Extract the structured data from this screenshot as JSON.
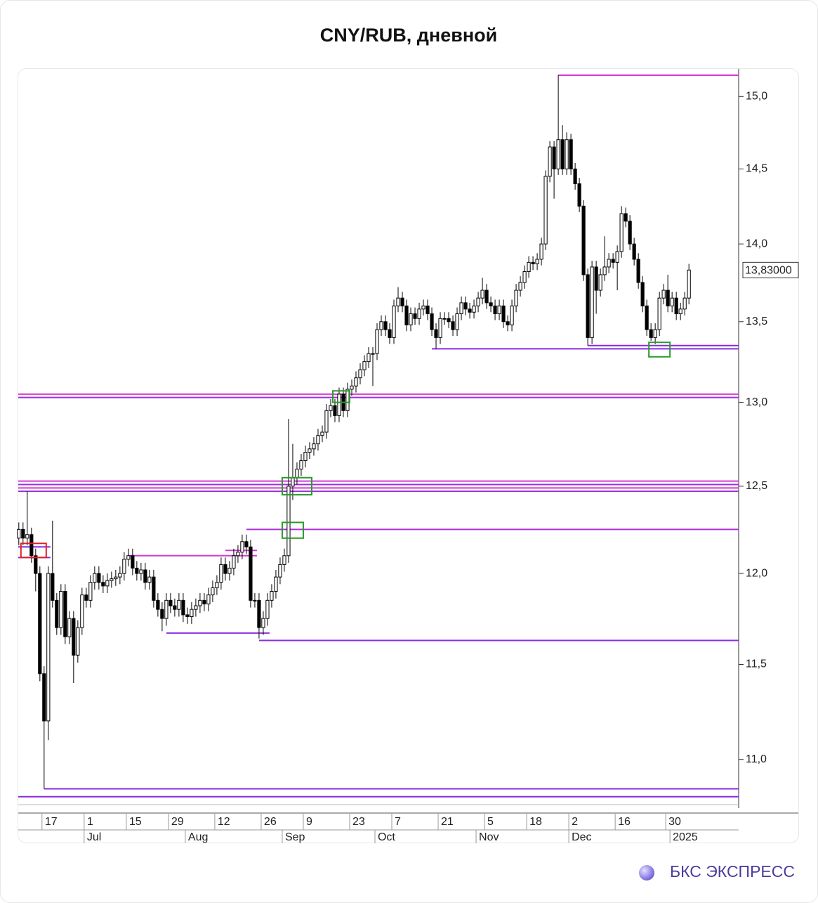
{
  "chart_data": {
    "type": "candlestick",
    "title": "CNY/RUB, дневной",
    "log_scale": true,
    "ylim": [
      10.77,
      15.2
    ],
    "yticks": [
      {
        "value": 11,
        "label": "11,0"
      },
      {
        "value": 11.5,
        "label": "11,5"
      },
      {
        "value": 12,
        "label": "12,0"
      },
      {
        "value": 12.5,
        "label": "12,5"
      },
      {
        "value": 13,
        "label": "13,0"
      },
      {
        "value": 13.5,
        "label": "13,5"
      },
      {
        "value": 14,
        "label": "14,0"
      },
      {
        "value": 14.5,
        "label": "14,5"
      },
      {
        "value": 15,
        "label": "15,0"
      }
    ],
    "xlim": [
      -0.3,
      170.8
    ],
    "xticks": [
      {
        "value": 6,
        "label": "17"
      },
      {
        "value": 16,
        "label": "1"
      },
      {
        "value": 26,
        "label": "15"
      },
      {
        "value": 36,
        "label": "29"
      },
      {
        "value": 47,
        "label": "12"
      },
      {
        "value": 58,
        "label": "26"
      },
      {
        "value": 68,
        "label": "9"
      },
      {
        "value": 79,
        "label": "23"
      },
      {
        "value": 89,
        "label": "7"
      },
      {
        "value": 100,
        "label": "21"
      },
      {
        "value": 111,
        "label": "5"
      },
      {
        "value": 121,
        "label": "18"
      },
      {
        "value": 131,
        "label": "2"
      },
      {
        "value": 142,
        "label": "16"
      },
      {
        "value": 154,
        "label": "30"
      }
    ],
    "month_ticks": [
      {
        "value": 16,
        "label": "Jul"
      },
      {
        "value": 40,
        "label": "Aug"
      },
      {
        "value": 63,
        "label": "Sep"
      },
      {
        "value": 85,
        "label": "Oct"
      },
      {
        "value": 109,
        "label": "Nov"
      },
      {
        "value": 131,
        "label": "Dec"
      },
      {
        "value": 155,
        "label": "2025"
      }
    ],
    "up_color": "#ffffff",
    "down_color": "#000000",
    "open": [
      12.2,
      12.25,
      12.2,
      12.22,
      12.1,
      12.0,
      11.45,
      11.2,
      12.0,
      11.85,
      11.7,
      11.9,
      11.65,
      11.75,
      11.55,
      11.7,
      11.88,
      11.85,
      11.95,
      12.0,
      11.95,
      11.93,
      11.96,
      11.97,
      11.98,
      12.0,
      12.08,
      12.1,
      12.03,
      12.0,
      12.02,
      11.95,
      11.98,
      11.85,
      11.8,
      11.75,
      11.85,
      11.82,
      11.8,
      11.85,
      11.77,
      11.76,
      11.8,
      11.82,
      11.85,
      11.83,
      11.88,
      11.92,
      11.95,
      12.05,
      12.0,
      12.03,
      12.1,
      12.12,
      12.18,
      12.15,
      11.85,
      11.85,
      11.7,
      11.75,
      11.85,
      11.9,
      11.98,
      12.05,
      12.1,
      12.5,
      12.55,
      12.6,
      12.65,
      12.7,
      12.72,
      12.75,
      12.8,
      12.82,
      12.95,
      12.98,
      12.92,
      13.05,
      12.95,
      13.08,
      13.1,
      13.15,
      13.2,
      13.25,
      13.3,
      13.3,
      13.45,
      13.5,
      13.45,
      13.4,
      13.6,
      13.65,
      13.6,
      13.48,
      13.55,
      13.52,
      13.58,
      13.6,
      13.55,
      13.45,
      13.4,
      13.52,
      13.52,
      13.5,
      13.45,
      13.55,
      13.62,
      13.58,
      13.56,
      13.6,
      13.65,
      13.7,
      13.62,
      13.6,
      13.55,
      13.6,
      13.5,
      13.48,
      13.6,
      13.7,
      13.75,
      13.82,
      13.88,
      13.87,
      13.9,
      14.0,
      14.45,
      14.65,
      14.5,
      14.7,
      14.5,
      14.7,
      14.5,
      14.4,
      14.25,
      13.8,
      13.4,
      13.85,
      13.7,
      13.8,
      13.85,
      13.9,
      13.88,
      13.95,
      14.2,
      14.15,
      14.0,
      13.9,
      13.75,
      13.6,
      13.45,
      13.4,
      13.45,
      13.65,
      13.7,
      13.6,
      13.65,
      13.55,
      13.58,
      13.65
    ],
    "high": [
      12.29,
      12.29,
      12.47,
      12.26,
      12.14,
      12.04,
      11.49,
      12.04,
      12.3,
      11.89,
      11.94,
      11.94,
      11.79,
      11.79,
      11.74,
      11.92,
      11.92,
      11.99,
      12.04,
      12.04,
      11.99,
      12.0,
      12.01,
      12.02,
      12.04,
      12.12,
      12.14,
      12.14,
      12.07,
      12.06,
      12.06,
      12.02,
      12.02,
      11.89,
      11.84,
      11.89,
      11.89,
      11.86,
      11.89,
      11.89,
      11.81,
      11.84,
      11.86,
      11.89,
      11.89,
      11.92,
      11.96,
      11.99,
      12.09,
      12.09,
      12.07,
      12.14,
      12.16,
      12.22,
      12.22,
      12.19,
      11.89,
      11.89,
      11.79,
      11.89,
      11.94,
      12.02,
      12.09,
      12.14,
      12.9,
      12.75,
      12.64,
      12.69,
      12.74,
      12.76,
      12.79,
      12.84,
      12.86,
      12.99,
      13.02,
      13.02,
      13.09,
      13.09,
      13.12,
      13.14,
      13.19,
      13.24,
      13.29,
      13.34,
      13.34,
      13.49,
      13.54,
      13.54,
      13.49,
      13.64,
      13.72,
      13.69,
      13.64,
      13.59,
      13.59,
      13.62,
      13.64,
      13.64,
      13.59,
      13.49,
      13.56,
      13.56,
      13.56,
      13.54,
      13.59,
      13.66,
      13.66,
      13.62,
      13.64,
      13.69,
      13.78,
      13.74,
      13.66,
      13.64,
      13.64,
      13.64,
      13.54,
      13.64,
      13.74,
      13.79,
      13.86,
      13.92,
      13.92,
      13.94,
      14.04,
      14.49,
      14.69,
      14.69,
      15.15,
      14.8,
      14.75,
      14.74,
      14.54,
      14.44,
      14.29,
      13.84,
      13.89,
      13.89,
      13.84,
      14.05,
      13.94,
      13.94,
      13.99,
      14.25,
      14.24,
      14.19,
      14.04,
      13.94,
      13.79,
      13.64,
      13.49,
      13.49,
      13.69,
      13.74,
      13.8,
      13.69,
      13.69,
      13.62,
      13.69,
      13.87
    ],
    "low": [
      12.16,
      12.16,
      12.16,
      12.06,
      11.9,
      11.41,
      10.85,
      11.1,
      11.81,
      11.66,
      11.66,
      11.61,
      11.61,
      11.4,
      11.51,
      11.66,
      11.81,
      11.81,
      11.91,
      11.91,
      11.89,
      11.89,
      11.92,
      11.93,
      11.94,
      11.96,
      12.04,
      11.99,
      11.96,
      11.96,
      11.91,
      11.91,
      11.81,
      11.76,
      11.68,
      11.71,
      11.78,
      11.76,
      11.76,
      11.73,
      11.72,
      11.72,
      11.76,
      11.78,
      11.79,
      11.79,
      11.84,
      11.88,
      11.91,
      11.96,
      11.96,
      11.99,
      12.06,
      12.08,
      12.11,
      11.81,
      11.81,
      11.64,
      11.66,
      11.71,
      11.81,
      11.86,
      11.94,
      12.01,
      12.06,
      12.42,
      12.51,
      12.56,
      12.61,
      12.66,
      12.68,
      12.71,
      12.76,
      12.78,
      12.91,
      12.88,
      12.88,
      12.91,
      12.91,
      13.04,
      13.06,
      13.11,
      13.16,
      13.21,
      13.1,
      13.26,
      13.41,
      13.41,
      13.36,
      13.36,
      13.56,
      13.56,
      13.44,
      13.44,
      13.48,
      13.48,
      13.54,
      13.51,
      13.41,
      13.33,
      13.36,
      13.48,
      13.46,
      13.41,
      13.41,
      13.51,
      13.54,
      13.52,
      13.52,
      13.56,
      13.61,
      13.58,
      13.56,
      13.51,
      13.51,
      13.46,
      13.44,
      13.44,
      13.56,
      13.66,
      13.71,
      13.78,
      13.83,
      13.83,
      13.86,
      13.96,
      14.41,
      14.3,
      14.46,
      14.46,
      14.46,
      14.46,
      14.36,
      14.21,
      13.76,
      13.35,
      13.36,
      13.55,
      13.66,
      13.76,
      13.81,
      13.84,
      13.7,
      13.91,
      14.11,
      13.96,
      13.86,
      13.71,
      13.56,
      13.41,
      13.38,
      13.36,
      13.41,
      13.61,
      13.56,
      13.56,
      13.51,
      13.51,
      13.54,
      13.61
    ],
    "close": [
      12.25,
      12.2,
      12.22,
      12.1,
      12.0,
      11.45,
      11.2,
      12.0,
      11.85,
      11.7,
      11.9,
      11.65,
      11.75,
      11.55,
      11.7,
      11.88,
      11.85,
      11.95,
      12.0,
      11.95,
      11.93,
      11.96,
      11.97,
      11.98,
      12.0,
      12.08,
      12.1,
      12.03,
      12.0,
      12.02,
      11.95,
      11.98,
      11.85,
      11.8,
      11.75,
      11.85,
      11.82,
      11.8,
      11.85,
      11.77,
      11.76,
      11.8,
      11.82,
      11.85,
      11.83,
      11.88,
      11.92,
      11.95,
      12.05,
      12.0,
      12.03,
      12.1,
      12.12,
      12.18,
      12.15,
      11.85,
      11.85,
      11.7,
      11.75,
      11.85,
      11.9,
      11.98,
      12.05,
      12.1,
      12.5,
      12.55,
      12.6,
      12.65,
      12.7,
      12.72,
      12.75,
      12.8,
      12.82,
      12.95,
      12.98,
      12.92,
      13.05,
      12.95,
      13.08,
      13.1,
      13.15,
      13.2,
      13.25,
      13.3,
      13.3,
      13.45,
      13.5,
      13.45,
      13.4,
      13.6,
      13.65,
      13.6,
      13.48,
      13.55,
      13.52,
      13.58,
      13.6,
      13.55,
      13.45,
      13.4,
      13.52,
      13.52,
      13.5,
      13.45,
      13.55,
      13.62,
      13.58,
      13.56,
      13.6,
      13.65,
      13.7,
      13.62,
      13.6,
      13.55,
      13.6,
      13.5,
      13.48,
      13.6,
      13.7,
      13.75,
      13.82,
      13.88,
      13.87,
      13.9,
      14.0,
      14.45,
      14.65,
      14.5,
      14.7,
      14.5,
      14.7,
      14.5,
      14.4,
      14.25,
      13.8,
      13.4,
      13.85,
      13.7,
      13.8,
      13.85,
      13.9,
      13.88,
      13.95,
      14.2,
      14.15,
      14.0,
      13.9,
      13.75,
      13.6,
      13.45,
      13.4,
      13.45,
      13.65,
      13.7,
      13.6,
      13.65,
      13.55,
      13.58,
      13.65,
      13.83
    ],
    "last_price": {
      "value": 13.83,
      "label": "13,83000"
    },
    "levels": [
      {
        "value": 15.15,
        "from": 128,
        "color": "#d63ad6"
      },
      {
        "value": 13.35,
        "from": 135,
        "color": "#8a2be2"
      },
      {
        "value": 13.33,
        "from": 98,
        "color": "#8a2be2"
      },
      {
        "value": 13.05,
        "from": 0,
        "color": "#d63ad6"
      },
      {
        "value": 13.03,
        "from": 0,
        "color": "#9a30d8"
      },
      {
        "value": 12.53,
        "from": 0,
        "color": "#d63ad6"
      },
      {
        "value": 12.51,
        "from": 0,
        "color": "#9a30d8"
      },
      {
        "value": 12.49,
        "from": 0,
        "color": "#d63ad6"
      },
      {
        "value": 12.47,
        "from": 0,
        "color": "#9a30d8"
      },
      {
        "value": 12.25,
        "from": 54,
        "color": "#b030d8"
      },
      {
        "value": 12.13,
        "from": 49,
        "to": 56,
        "color": "#d63ad6"
      },
      {
        "value": 12.1,
        "from": 26,
        "to": 56,
        "color": "#d63ad6"
      },
      {
        "value": 12.15,
        "from": 0,
        "to": 7,
        "color": "#8a2be2"
      },
      {
        "value": 12.09,
        "from": 0,
        "to": 7,
        "color": "#8a2be2"
      },
      {
        "value": 11.67,
        "from": 35,
        "to": 59,
        "color": "#8a2be2"
      },
      {
        "value": 11.63,
        "from": 57,
        "color": "#8a2be2"
      },
      {
        "value": 10.85,
        "from": 6,
        "color": "#8a2be2"
      },
      {
        "value": 10.81,
        "from": 0,
        "color": "#8a2be2"
      }
    ],
    "boxes": [
      {
        "from": 1,
        "to": 6,
        "low": 12.09,
        "high": 12.17,
        "color": "#e02020"
      },
      {
        "from": 75,
        "to": 78,
        "low": 13.0,
        "high": 13.07,
        "color": "#2a9a2a"
      },
      {
        "from": 63,
        "to": 69,
        "low": 12.45,
        "high": 12.55,
        "color": "#2a9a2a"
      },
      {
        "from": 63,
        "to": 67,
        "low": 12.2,
        "high": 12.29,
        "color": "#2a9a2a"
      },
      {
        "from": 150,
        "to": 154,
        "low": 13.28,
        "high": 13.37,
        "color": "#2a9a2a"
      }
    ]
  },
  "brand": "БКС ЭКСПРЕСС"
}
